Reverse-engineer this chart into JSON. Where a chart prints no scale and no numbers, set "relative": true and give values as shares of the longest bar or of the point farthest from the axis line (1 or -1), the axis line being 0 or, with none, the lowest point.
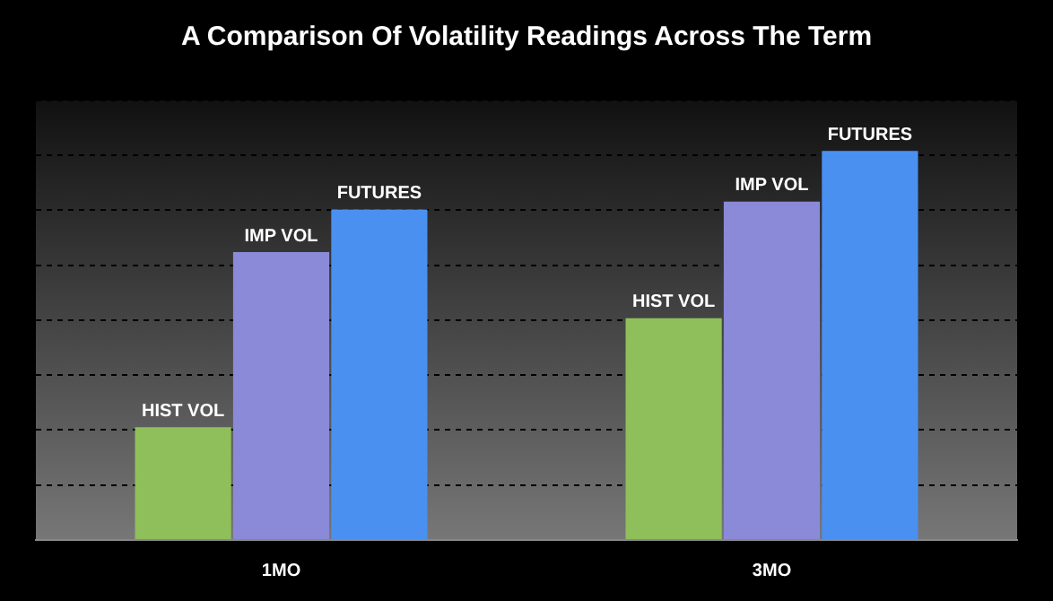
{
  "chart_data": {
    "type": "bar",
    "title": "A Comparison Of Volatility Readings Across The Term",
    "categories": [
      "1MO",
      "3MO"
    ],
    "relative": true,
    "grid": "y",
    "series": [
      {
        "name": "HIST VOL",
        "color": "#8fbf5a",
        "values": [
          0.29,
          0.57
        ]
      },
      {
        "name": "IMP VOL",
        "color": "#8a8ad8",
        "values": [
          0.74,
          0.87
        ]
      },
      {
        "name": "FUTURES",
        "color": "#4a90f0",
        "values": [
          0.85,
          1
        ]
      }
    ]
  }
}
